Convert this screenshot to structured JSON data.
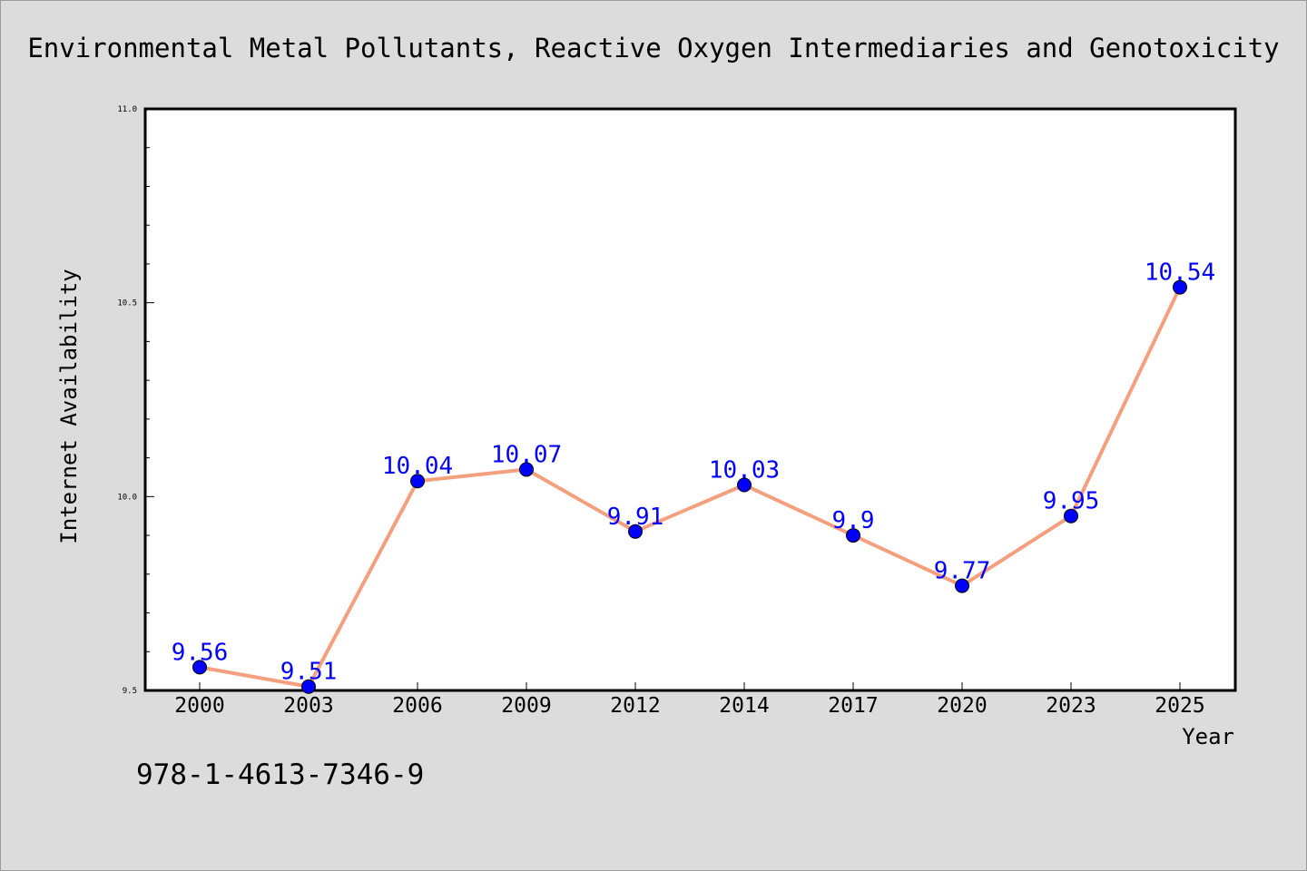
{
  "chart_data": {
    "type": "line",
    "title": "Environmental Metal Pollutants, Reactive Oxygen Intermediaries and Genotoxicity",
    "xlabel": "Year",
    "ylabel": "Internet Availability",
    "categories": [
      "2000",
      "2003",
      "2006",
      "2009",
      "2012",
      "2014",
      "2017",
      "2020",
      "2023",
      "2025"
    ],
    "series": [
      {
        "values": [
          9.56,
          9.51,
          10.04,
          10.07,
          9.91,
          10.03,
          9.9,
          9.77,
          9.95,
          10.54
        ],
        "labels": [
          "9.56",
          "9.51",
          "10.04",
          "10.07",
          "9.91",
          "10.03",
          "9.9",
          "9.77",
          "9.95",
          "10.54"
        ]
      }
    ],
    "ylim": [
      9.5,
      11.0
    ],
    "yticks_major": [
      "9.5",
      "10.0",
      "10.5",
      "11.0"
    ],
    "grid": false,
    "line_color": "#f4a07f",
    "marker_color": "#0000ff",
    "label_color": "#0000ff"
  },
  "footer": {
    "isbn": "978-1-4613-7346-9"
  },
  "colors": {
    "background": "#dcdcdc",
    "plot_background": "#ffffff"
  }
}
